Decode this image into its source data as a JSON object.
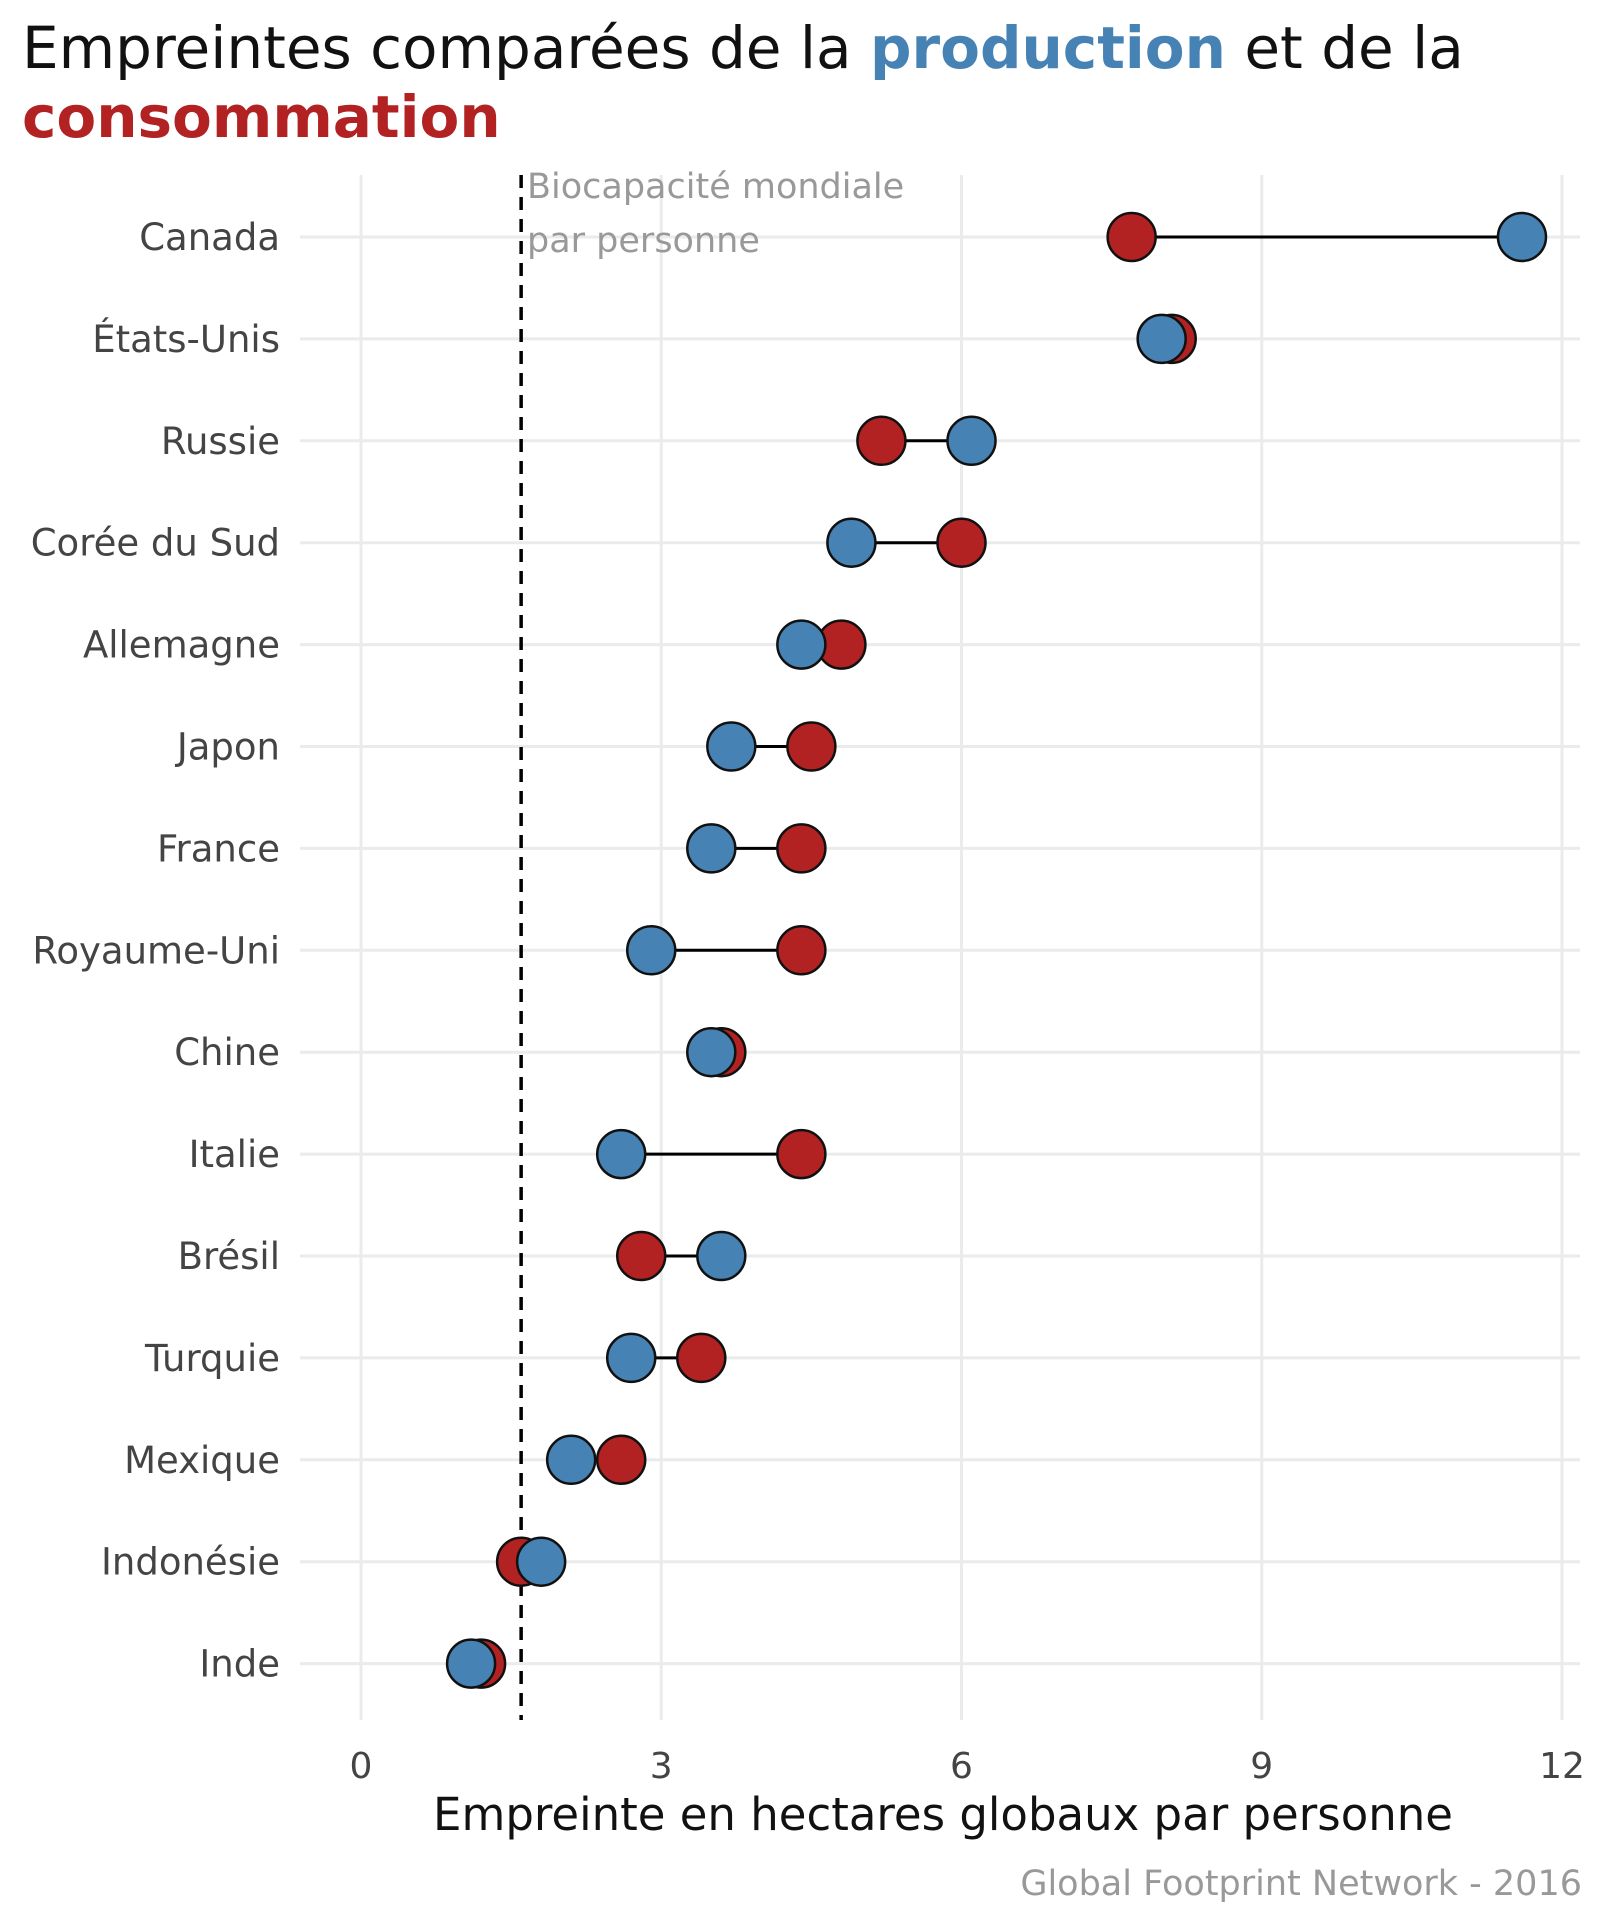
{
  "chart_data": {
    "type": "dumbbell",
    "title_parts": [
      {
        "text": "Empreintes comparées de la ",
        "style": "plain"
      },
      {
        "text": "production",
        "style": "production"
      },
      {
        "text": " et de la",
        "style": "plain"
      },
      {
        "text": "consommation",
        "style": "consumption"
      }
    ],
    "xlabel": "Empreinte en hectares globaux par personne",
    "caption": "Global Footprint Network - 2016",
    "annotation": [
      "Biocapacité mondiale",
      "par personne"
    ],
    "reference_x": 1.6,
    "xlim": [
      0,
      12
    ],
    "xticks": [
      0,
      3,
      6,
      9,
      12
    ],
    "grid": true,
    "colors": {
      "production": "#4682b4",
      "consumption": "#b22222"
    },
    "categories": [
      "Canada",
      "États-Unis",
      "Russie",
      "Corée du Sud",
      "Allemagne",
      "Japon",
      "France",
      "Royaume-Uni",
      "Chine",
      "Italie",
      "Brésil",
      "Turquie",
      "Mexique",
      "Indonésie",
      "Inde"
    ],
    "series": [
      {
        "key": "consumption",
        "values": [
          7.7,
          8.1,
          5.2,
          6.0,
          4.8,
          4.5,
          4.4,
          4.4,
          3.6,
          4.4,
          2.8,
          3.4,
          2.6,
          1.6,
          1.2
        ]
      },
      {
        "key": "production",
        "values": [
          11.6,
          8.0,
          6.1,
          4.9,
          4.4,
          3.7,
          3.5,
          2.9,
          3.5,
          2.6,
          3.6,
          2.7,
          2.1,
          1.8,
          1.1
        ]
      }
    ]
  }
}
